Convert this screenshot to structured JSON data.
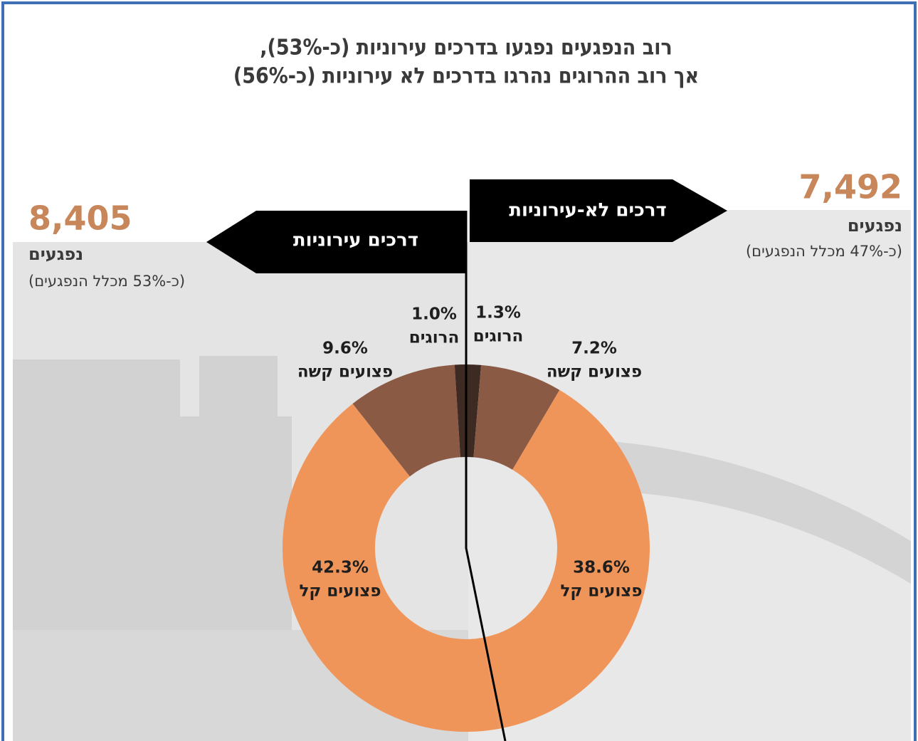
{
  "chart_data": {
    "type": "donut",
    "title": [
      "רוב הנפגעים נפגעו בדרכים עירוניות (כ-53%),",
      "אך רוב ההרוגים נהרגו בדרכים לא עירוניות (כ-56%)"
    ],
    "groups": [
      {
        "name": "דרכים לא-עירוניות",
        "total": "7,492",
        "total_name": "נפגעים",
        "share": "(כ-47% מכלל הנפגעים)"
      },
      {
        "name": "דרכים עירוניות",
        "total": "8,405",
        "total_name": "נפגעים",
        "share": "(כ-53% מכלל הנפגעים)"
      }
    ],
    "categories": [
      "הרוגים",
      "פצועים קשה",
      "פצועים קל",
      "פצועים קל",
      "פצועים קשה",
      "הרוגים"
    ],
    "values": [
      1.3,
      7.2,
      38.6,
      42.3,
      9.6,
      1.0
    ],
    "value_labels": [
      "1.3%",
      "7.2%",
      "38.6%",
      "42.3%",
      "9.6%",
      "1.0%"
    ],
    "colors": [
      "#3d2a22",
      "#8a5a45",
      "#f0955a",
      "#f0955a",
      "#8a5a45",
      "#3d2a22"
    ]
  }
}
